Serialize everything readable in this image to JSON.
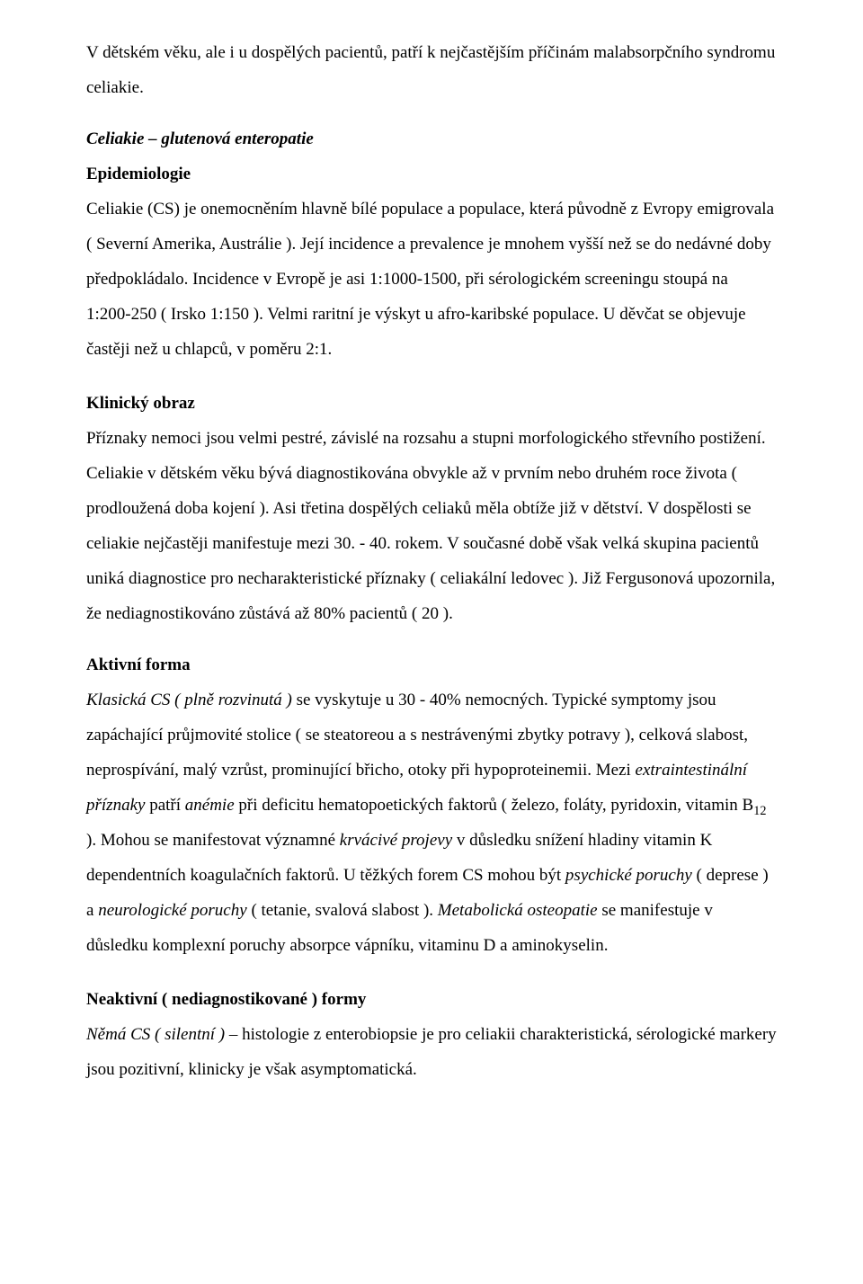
{
  "p1": "V dětském věku, ale i u dospělých pacientů, patří k nejčastějším příčinám malabsorpčního syndromu celiakie.",
  "h1": "Celiakie – glutenová enteropatie",
  "h2": "Epidemiologie",
  "p2": "Celiakie (CS) je onemocněním hlavně bílé populace a populace, která původně z Evropy emigrovala   ( Severní Amerika, Austrálie ). Její incidence a prevalence je mnohem vyšší než se do nedávné doby předpokládalo. Incidence v Evropě je asi 1:1000-1500, při sérologickém screeningu stoupá na 1:200-250 ( Irsko 1:150 ). Velmi raritní je výskyt u afro-karibské populace. U děvčat se objevuje častěji než u chlapců, v poměru 2:1.",
  "h3": "Klinický obraz",
  "p3": "Příznaky nemoci jsou velmi pestré, závislé na rozsahu a stupni morfologického střevního postižení. Celiakie v dětském věku bývá diagnostikována obvykle až v prvním nebo druhém roce života ( prodloužená doba kojení ). Asi třetina dospělých celiaků měla obtíže již v dětství. V dospělosti se celiakie nejčastěji manifestuje mezi 30.  - 40. rokem.  V současné době však velká skupina pacientů uniká diagnostice pro necharakteristické příznaky ( celiakální ledovec ). Již Fergusonová upozornila, že nediagnostikováno zůstává až 80% pacientů ( 20 ).",
  "h4": "Aktivní forma",
  "p4a_i": "Klasická CS ( plně rozvinutá )",
  "p4a_r": " se vyskytuje u 30 - 40% nemocných. Typické symptomy jsou zapáchající průjmovité stolice ( se steatoreou a s nestrávenými zbytky potravy ), celková slabost, neprospívání, malý vzrůst, prominující břicho, otoky při hypoproteinemii. Mezi ",
  "p4b_i": "extraintestinální příznaky",
  "p4b_r": " patří ",
  "p4c_i": "anémie",
  "p4c_r": " při deficitu hematopoetických faktorů ( železo, foláty, pyridoxin, vitamin B",
  "p4_sub": "12",
  "p4d_r": " ). Mohou se manifestovat významné ",
  "p4e_i": "krvácivé projevy",
  "p4e_r": " v důsledku snížení hladiny vitamin K dependentních koagulačních faktorů. U těžkých forem CS mohou být ",
  "p4f_i": "psychické poruchy",
  "p4f_r": " ( deprese ) a ",
  "p4g_i": "neurologické poruchy",
  "p4g_r": " ( tetanie, svalová slabost ). ",
  "p4h_i": "Metabolická osteopatie",
  "p4h_r": " se manifestuje v důsledku komplexní poruchy absorpce vápníku, vitaminu D a aminokyselin.",
  "h5": "Neaktivní ( nediagnostikované ) formy",
  "p5a_i": "Němá CS ( silentní )",
  "p5a_r": " – histologie z enterobiopsie je pro celiakii charakteristická, sérologické markery jsou pozitivní, klinicky je však asymptomatická."
}
